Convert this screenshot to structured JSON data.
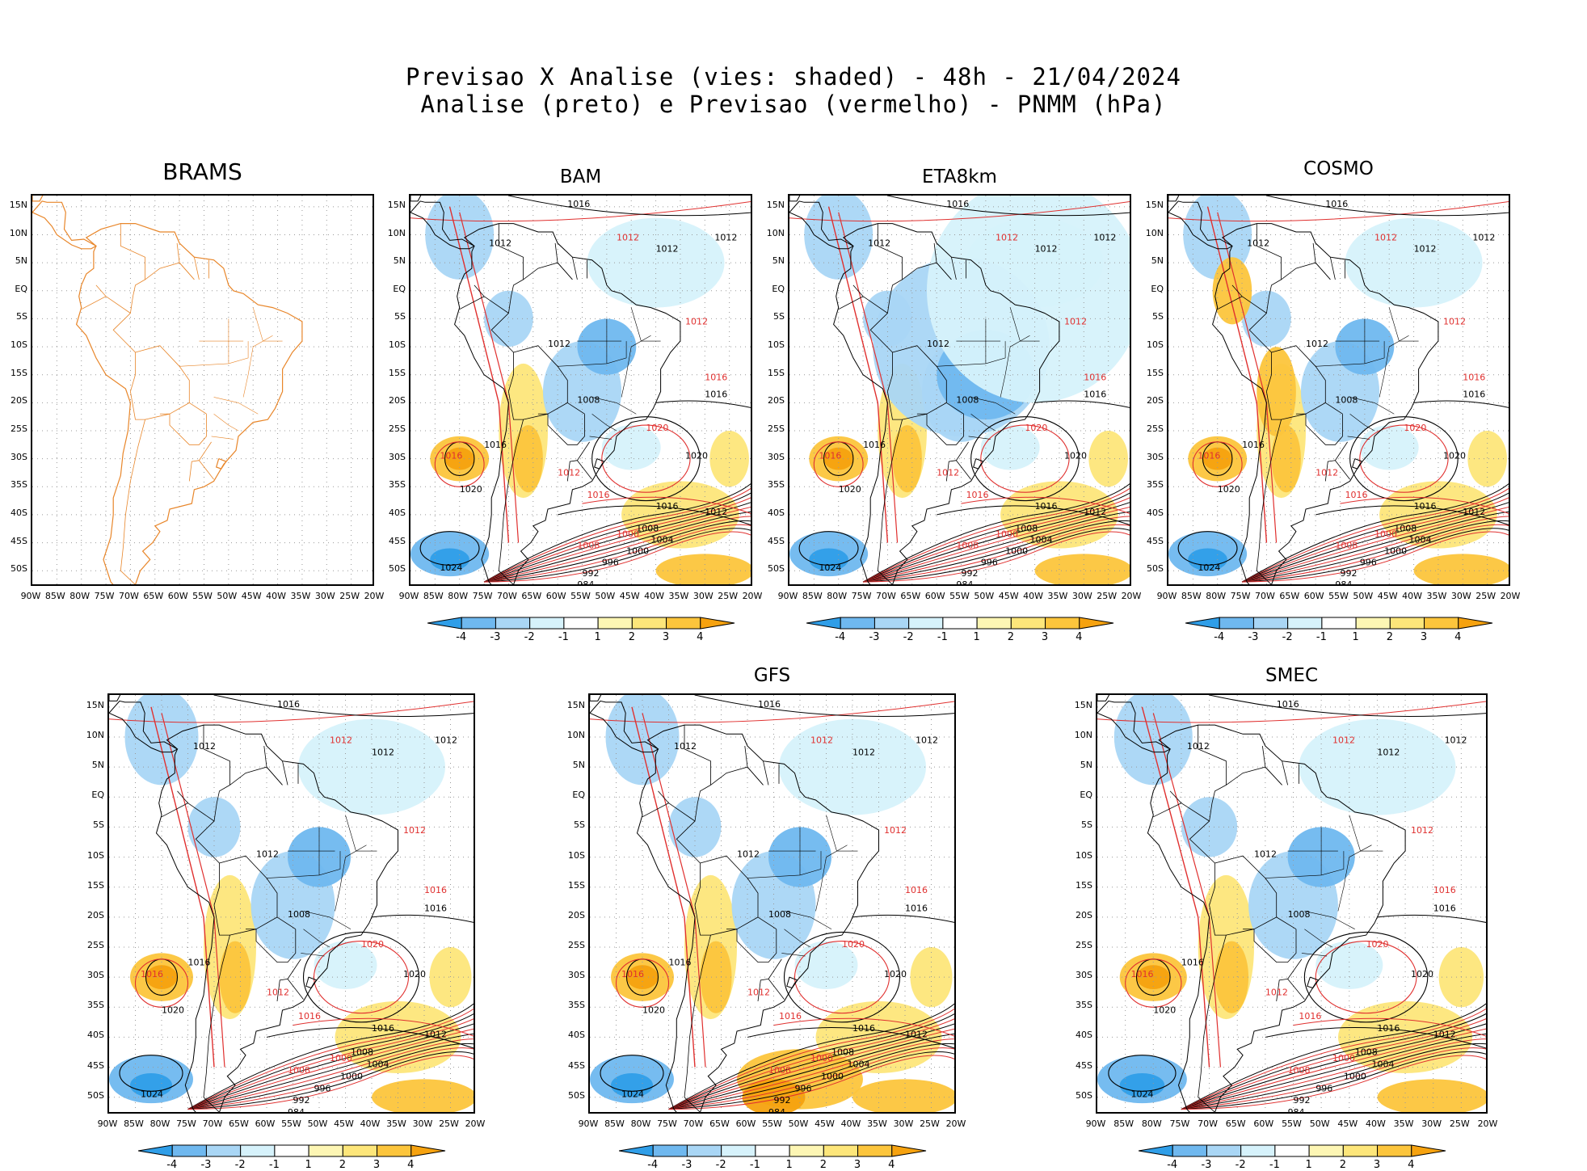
{
  "title": {
    "line1": "Previsao X Analise (vies: shaded) - 48h - 21/04/2024",
    "line2": "Analise (preto) e Previsao (vermelho) - PNMM (hPa)"
  },
  "panels": [
    {
      "id": "brams",
      "label": "BRAMS",
      "has_bias": false
    },
    {
      "id": "bam",
      "label": "BAM",
      "has_bias": true
    },
    {
      "id": "eta8km",
      "label": "ETA8km",
      "has_bias": true
    },
    {
      "id": "cosmo",
      "label": "COSMO",
      "has_bias": true
    },
    {
      "id": "unlabeled",
      "label": "",
      "has_bias": true
    },
    {
      "id": "gfs",
      "label": "GFS",
      "has_bias": true
    },
    {
      "id": "smec",
      "label": "SMEC",
      "has_bias": true
    }
  ],
  "axes": {
    "lat_ticks": [
      "15N",
      "10N",
      "5N",
      "EQ",
      "5S",
      "10S",
      "15S",
      "20S",
      "25S",
      "30S",
      "35S",
      "40S",
      "45S",
      "50S"
    ],
    "lon_ticks": [
      "90W",
      "85W",
      "80W",
      "75W",
      "70W",
      "65W",
      "60W",
      "55W",
      "50W",
      "45W",
      "40W",
      "35W",
      "30W",
      "25W",
      "20W"
    ]
  },
  "colorbar": {
    "labels": [
      "-4",
      "-3",
      "-2",
      "-1",
      "1",
      "2",
      "3",
      "4"
    ],
    "colors": [
      "#2f9ee8",
      "#6fb8ef",
      "#a9d6f5",
      "#d6f2fb",
      "#ffffff",
      "#fdf6b4",
      "#fde67a",
      "#fcc53c",
      "#f6a20f"
    ]
  },
  "contour_labels": {
    "black": [
      "1012",
      "1016",
      "1020",
      "1024",
      "1008",
      "1004",
      "1000",
      "996",
      "992",
      "984"
    ],
    "red": [
      "1012",
      "1016",
      "1020",
      "1008",
      "1000",
      "996"
    ]
  },
  "colors": {
    "analysis": "#000000",
    "forecast": "#e0302f",
    "coastline_brams": "#e8862a",
    "grid": "#999999"
  }
}
